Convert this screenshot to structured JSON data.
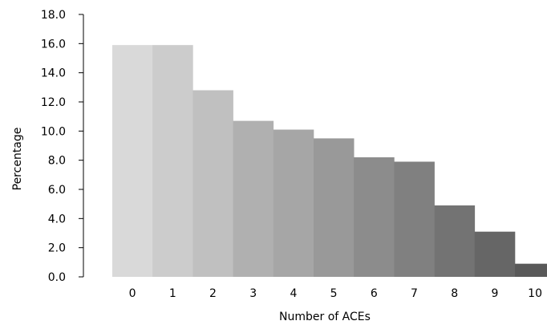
{
  "chart_data": {
    "type": "bar",
    "title": "",
    "xlabel": "Number of ACEs",
    "ylabel": "Percentage",
    "categories": [
      "0",
      "1",
      "2",
      "3",
      "4",
      "5",
      "6",
      "7",
      "8",
      "9",
      "10"
    ],
    "values": [
      15.9,
      15.9,
      12.8,
      10.7,
      10.1,
      9.5,
      8.2,
      7.9,
      4.9,
      3.1,
      0.9
    ],
    "ylim": [
      0,
      18
    ],
    "yticks": [
      "0.0",
      "2.0",
      "4.0",
      "6.0",
      "8.0",
      "10.0",
      "12.0",
      "14.0",
      "16.0",
      "18.0"
    ],
    "grid": false,
    "legend": "none",
    "bar_colors": [
      "#d9d9d9",
      "#cccccc",
      "#c0c0c0",
      "#b0b0b0",
      "#a6a6a6",
      "#999999",
      "#8c8c8c",
      "#808080",
      "#737373",
      "#666666",
      "#595959"
    ]
  }
}
